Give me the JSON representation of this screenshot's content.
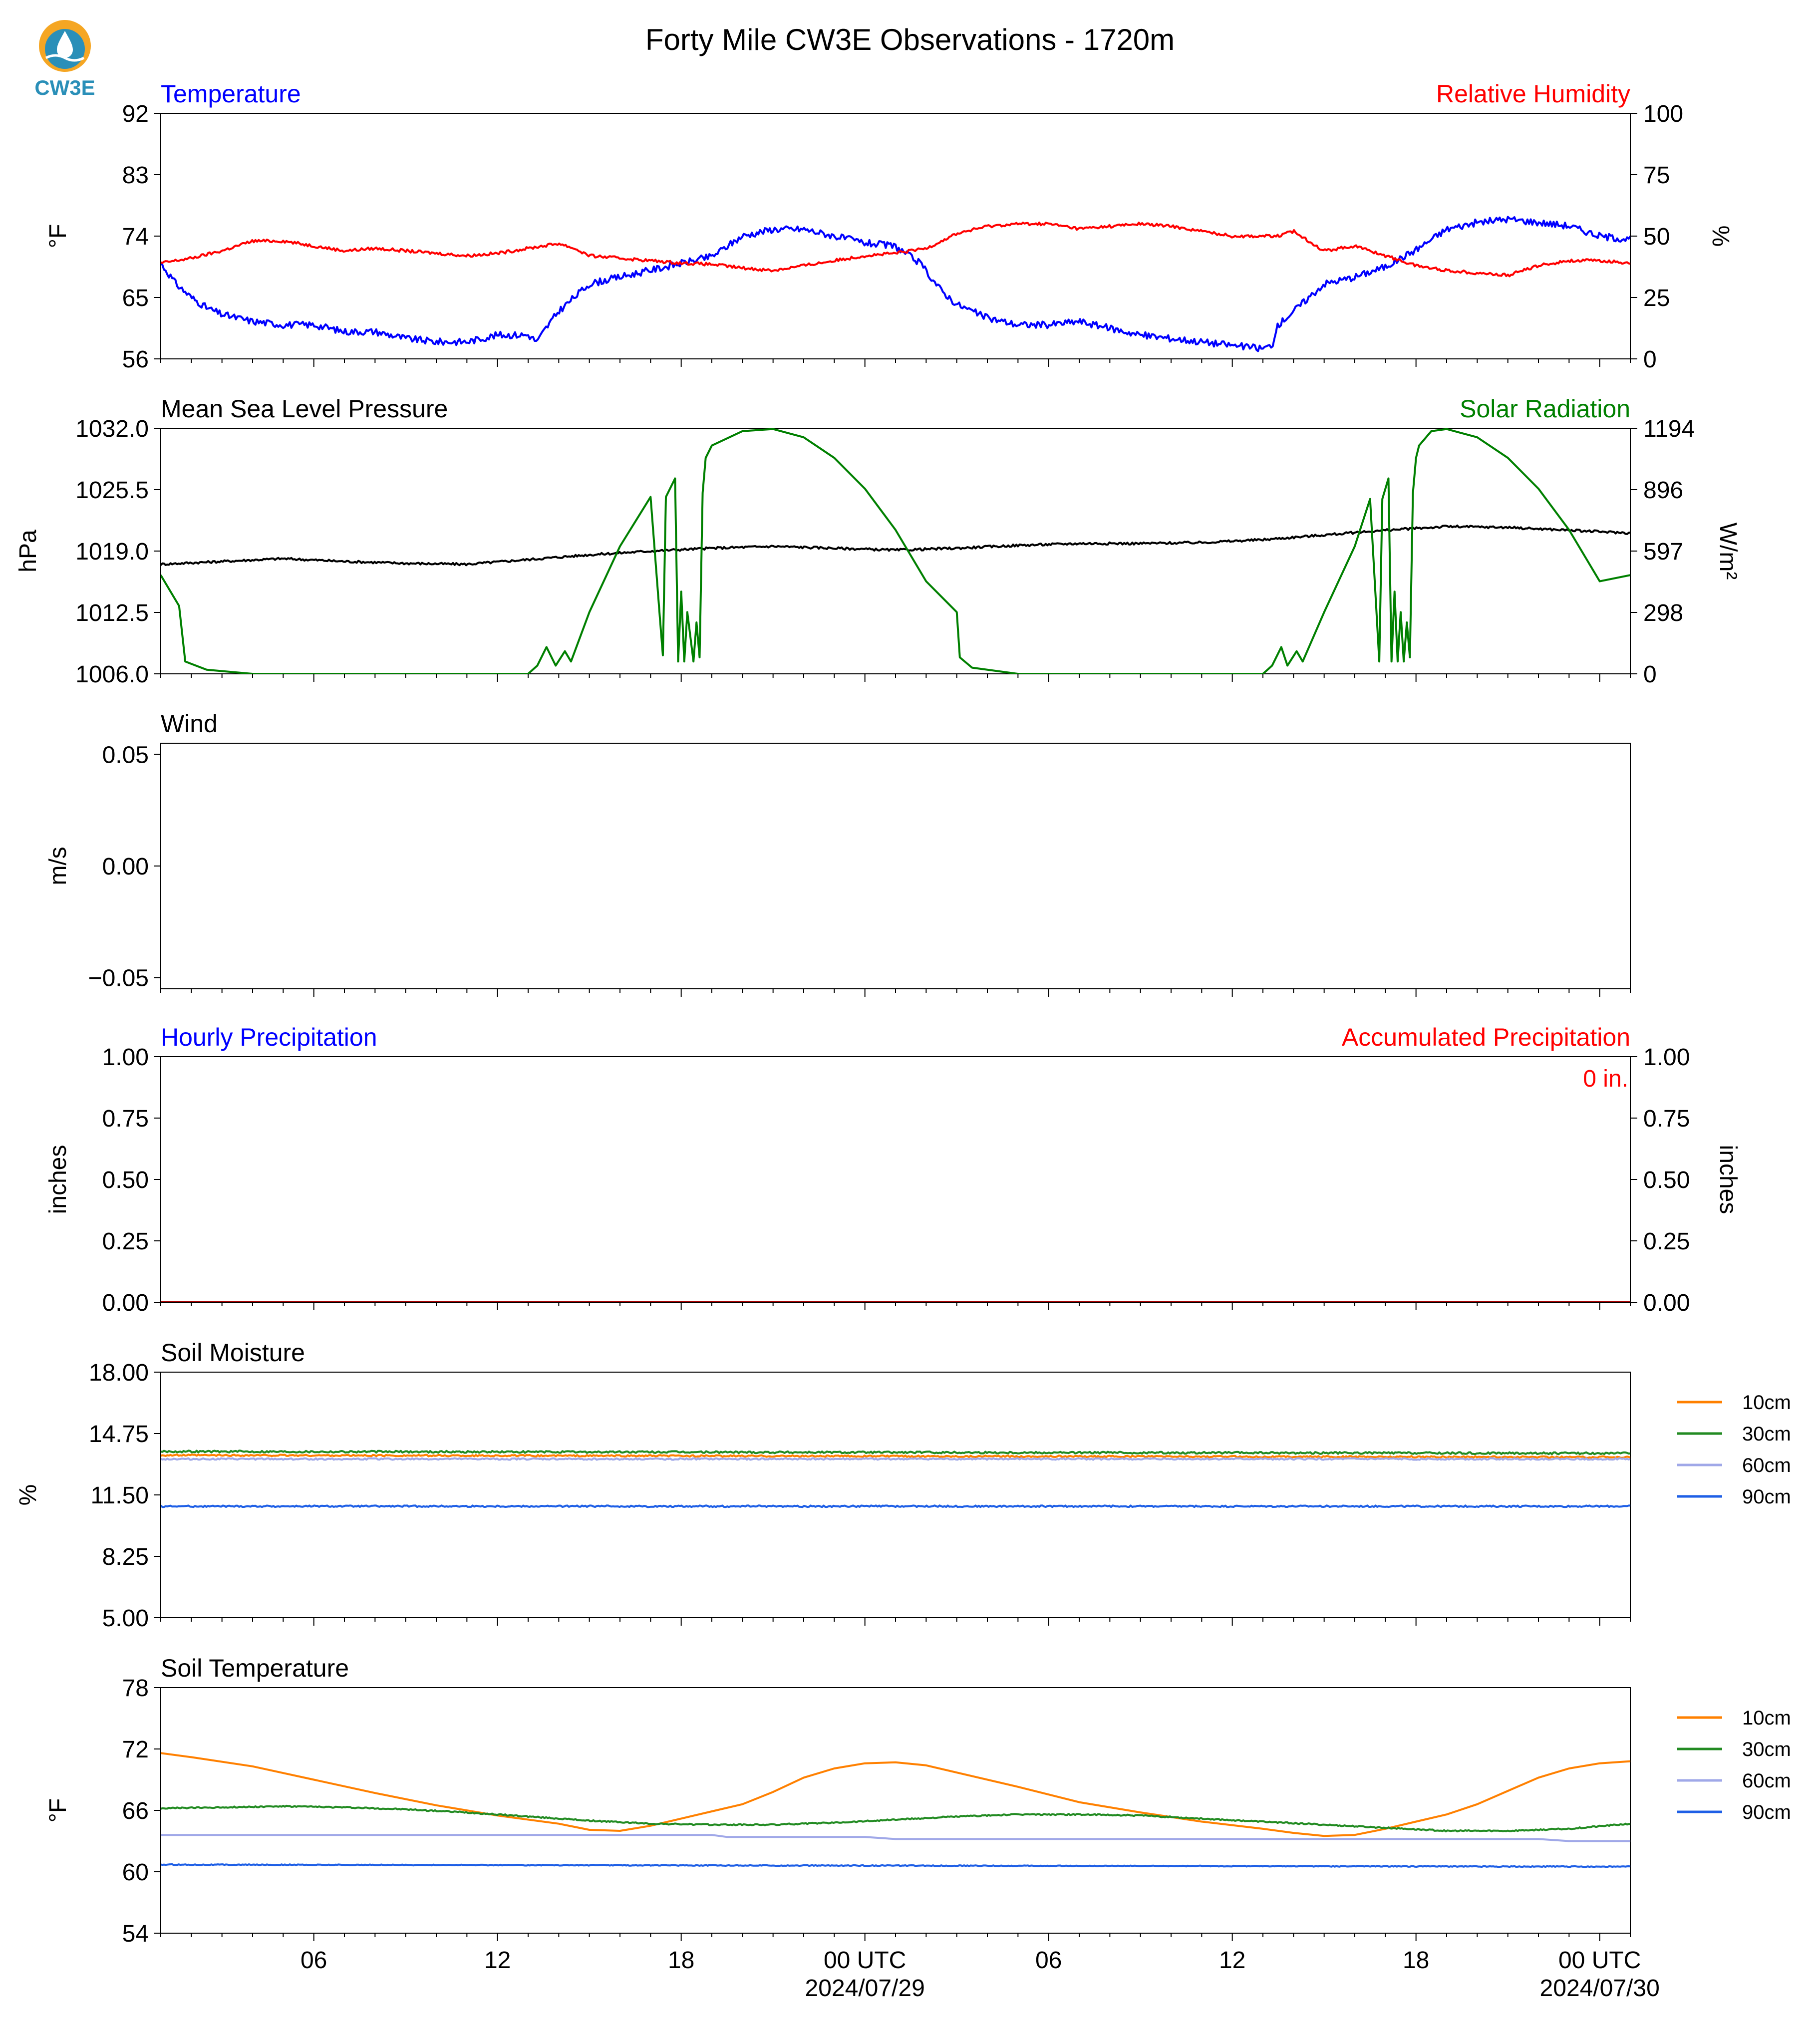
{
  "figure": {
    "title": "Forty Mile CW3E Observations - 1720m",
    "logo_text": "CW3E",
    "x_axis": {
      "range": [
        0,
        48
      ],
      "tick_labels": [
        {
          "x": 5,
          "label": "06",
          "date": ""
        },
        {
          "x": 11,
          "label": "12",
          "date": ""
        },
        {
          "x": 17,
          "label": "18",
          "date": ""
        },
        {
          "x": 23,
          "label": "00 UTC",
          "date": "2024/07/29"
        },
        {
          "x": 29,
          "label": "06",
          "date": ""
        },
        {
          "x": 35,
          "label": "12",
          "date": ""
        },
        {
          "x": 41,
          "label": "18",
          "date": ""
        },
        {
          "x": 47,
          "label": "00 UTC",
          "date": "2024/07/30"
        }
      ]
    }
  },
  "chart_data": [
    {
      "type": "line",
      "id": "temp_rh",
      "left_title": "Temperature",
      "right_title": "Relative Humidity",
      "left_title_color": "#0000ff",
      "right_title_color": "#ff0000",
      "ylabel": "°F",
      "ylabel_right": "%",
      "ylim": [
        56,
        92
      ],
      "yticks": [
        "92",
        "83",
        "74",
        "65",
        "56"
      ],
      "ylim_right": [
        0,
        100
      ],
      "yticks_right": [
        "100",
        "75",
        "50",
        "25",
        "0"
      ],
      "series": [
        {
          "axis": "left",
          "color": "#0000ff",
          "noise": 0.5,
          "x": [
            0,
            0.5,
            1,
            1.5,
            2,
            2.5,
            3,
            4,
            5,
            6,
            7,
            8,
            9,
            10,
            11,
            12,
            12.3,
            12.5,
            13,
            13.5,
            14,
            15,
            16,
            17,
            18,
            19,
            20,
            21,
            22,
            23,
            24,
            24.8,
            25.5,
            26,
            27,
            28,
            29,
            30,
            31,
            32,
            33,
            34,
            35,
            36,
            36.3,
            36.5,
            37,
            37.5,
            38,
            39,
            40,
            41,
            42,
            43,
            44,
            45,
            46,
            47,
            48
          ],
          "y": [
            70,
            67,
            65,
            63.5,
            62.5,
            62,
            61.5,
            61,
            61,
            60,
            60,
            59,
            58.5,
            58.5,
            59.5,
            59.5,
            58.5,
            60,
            63,
            65,
            67,
            68,
            69,
            70,
            71,
            74,
            75,
            75,
            74,
            73,
            72.5,
            70,
            66,
            64,
            62,
            61,
            61,
            61.5,
            60.5,
            59.5,
            59,
            58.5,
            58,
            57.5,
            58,
            61,
            63,
            65,
            67,
            68,
            69.5,
            72,
            75,
            76,
            76.5,
            76,
            75.5,
            74,
            73.5
          ]
        },
        {
          "axis": "right",
          "color": "#ff0000",
          "noise": 0.6,
          "x": [
            0,
            1,
            2,
            3,
            4,
            5,
            6,
            7,
            8,
            9,
            10,
            11,
            12,
            13,
            13.5,
            14,
            15,
            16,
            17,
            18,
            19,
            20,
            21,
            22,
            23,
            24,
            25,
            26,
            27,
            28,
            29,
            30,
            31,
            32,
            33,
            34,
            35,
            36,
            36.5,
            37,
            37.5,
            38,
            39,
            40,
            41,
            42,
            43,
            44,
            45,
            46,
            47,
            48
          ],
          "y": [
            39,
            41,
            44,
            48,
            48,
            46,
            44,
            45,
            44,
            43,
            42,
            43,
            45,
            47,
            45,
            42,
            41,
            40,
            39,
            38.5,
            37,
            36,
            38,
            40,
            42,
            43,
            45,
            51,
            54,
            55,
            55,
            53,
            54,
            55,
            54,
            52,
            50,
            50,
            50,
            52,
            48,
            44,
            46,
            42,
            38,
            36,
            35,
            34,
            38,
            40,
            40,
            39
          ]
        }
      ]
    },
    {
      "type": "line",
      "id": "pressure_solar",
      "left_title": "Mean Sea Level Pressure",
      "right_title": "Solar Radiation",
      "left_title_color": "#000000",
      "right_title_color": "#008000",
      "ylabel": "hPa",
      "ylabel_right": "W/m²",
      "ylim": [
        1006.0,
        1032.0
      ],
      "yticks": [
        "1032.0",
        "1025.5",
        "1019.0",
        "1012.5",
        "1006.0"
      ],
      "ylim_right": [
        0,
        1194
      ],
      "yticks_right": [
        "1194",
        "896",
        "597",
        "298",
        "0"
      ],
      "series": [
        {
          "axis": "left",
          "color": "#000000",
          "noise": 0.12,
          "x": [
            0,
            2,
            4,
            6,
            8,
            10,
            12,
            14,
            16,
            18,
            20,
            22,
            24,
            26,
            28,
            30,
            32,
            34,
            36,
            38,
            40,
            42,
            44,
            46,
            48
          ],
          "y": [
            1017.6,
            1017.9,
            1018.2,
            1017.9,
            1017.7,
            1017.6,
            1018.1,
            1018.6,
            1019.0,
            1019.3,
            1019.5,
            1019.3,
            1019.1,
            1019.3,
            1019.6,
            1019.8,
            1019.8,
            1019.9,
            1020.2,
            1020.7,
            1021.2,
            1021.6,
            1021.5,
            1021.2,
            1020.9
          ]
        },
        {
          "axis": "right",
          "color": "#008000",
          "noise": 0,
          "x": [
            0,
            0.6,
            0.8,
            1.5,
            3,
            6,
            9,
            12,
            12.3,
            12.6,
            12.9,
            13.2,
            13.4,
            14,
            15,
            16,
            16.3,
            16.4,
            16.5,
            16.8,
            16.9,
            17,
            17.1,
            17.2,
            17.4,
            17.5,
            17.6,
            17.7,
            17.8,
            18,
            19,
            20,
            21,
            22,
            23,
            24,
            25,
            26,
            26.1,
            26.5,
            28,
            30,
            33,
            36,
            36.3,
            36.6,
            36.8,
            37.1,
            37.3,
            38,
            39,
            39.5,
            39.8,
            39.9,
            40.1,
            40.2,
            40.3,
            40.4,
            40.5,
            40.6,
            40.7,
            40.8,
            40.9,
            41,
            41.1,
            41.5,
            42,
            43,
            44,
            45,
            46,
            47,
            48
          ],
          "y": [
            480,
            330,
            60,
            20,
            0,
            0,
            0,
            0,
            40,
            130,
            40,
            110,
            60,
            300,
            620,
            860,
            280,
            90,
            860,
            950,
            60,
            400,
            60,
            300,
            60,
            250,
            80,
            880,
            1050,
            1110,
            1180,
            1190,
            1150,
            1050,
            900,
            700,
            450,
            300,
            80,
            30,
            0,
            0,
            0,
            0,
            40,
            130,
            40,
            110,
            60,
            300,
            620,
            850,
            60,
            850,
            950,
            60,
            400,
            60,
            300,
            60,
            250,
            80,
            880,
            1050,
            1110,
            1180,
            1190,
            1150,
            1050,
            900,
            700,
            450,
            480
          ]
        }
      ]
    },
    {
      "type": "line",
      "id": "wind",
      "left_title": "Wind",
      "right_title": "",
      "left_title_color": "#000000",
      "right_title_color": "#000000",
      "ylabel": "m/s",
      "ylabel_right": "",
      "ylim": [
        -0.055,
        0.055
      ],
      "ytick_values": [
        0.05,
        0.0,
        -0.05
      ],
      "yticks": [
        "0.05",
        "0.00",
        "−0.05"
      ],
      "series": []
    },
    {
      "type": "line",
      "id": "precip",
      "left_title": "Hourly Precipitation",
      "right_title": "Accumulated Precipitation",
      "left_title_color": "#0000ff",
      "right_title_color": "#ff0000",
      "ylabel": "inches",
      "ylabel_right": "inches",
      "ylim": [
        0,
        1
      ],
      "yticks": [
        "1.00",
        "0.75",
        "0.50",
        "0.25",
        "0.00"
      ],
      "ylim_right": [
        0,
        1
      ],
      "yticks_right": [
        "1.00",
        "0.75",
        "0.50",
        "0.25",
        "0.00"
      ],
      "annotation": "0 in.",
      "series": [
        {
          "axis": "right",
          "color": "#aa0000",
          "noise": 0,
          "x": [
            0,
            48
          ],
          "y": [
            0,
            0
          ]
        }
      ]
    },
    {
      "type": "line",
      "id": "soil_moisture",
      "left_title": "Soil Moisture",
      "right_title": "",
      "left_title_color": "#000000",
      "right_title_color": "#000000",
      "ylabel": "%",
      "ylabel_right": "",
      "ylim": [
        5.0,
        18.0
      ],
      "yticks": [
        "18.00",
        "14.75",
        "11.50",
        "8.25",
        "5.00"
      ],
      "legend": [
        "10cm",
        "30cm",
        "60cm",
        "90cm"
      ],
      "series": [
        {
          "name": "10cm",
          "axis": "left",
          "color": "#ff8000",
          "noise": 0.04,
          "x": [
            0,
            48
          ],
          "y": [
            13.6,
            13.5
          ]
        },
        {
          "name": "30cm",
          "axis": "left",
          "color": "#228b22",
          "noise": 0.05,
          "x": [
            0,
            48
          ],
          "y": [
            13.8,
            13.7
          ]
        },
        {
          "name": "60cm",
          "axis": "left",
          "color": "#a0a8e8",
          "noise": 0.04,
          "x": [
            0,
            48
          ],
          "y": [
            13.4,
            13.4
          ]
        },
        {
          "name": "90cm",
          "axis": "left",
          "color": "#1e5fe6",
          "noise": 0.04,
          "x": [
            0,
            48
          ],
          "y": [
            10.9,
            10.9
          ]
        }
      ]
    },
    {
      "type": "line",
      "id": "soil_temperature",
      "left_title": "Soil Temperature",
      "right_title": "",
      "left_title_color": "#000000",
      "right_title_color": "#000000",
      "ylabel": "°F",
      "ylabel_right": "",
      "ylim": [
        54,
        78
      ],
      "yticks": [
        "78",
        "72",
        "66",
        "60",
        "54"
      ],
      "legend": [
        "10cm",
        "30cm",
        "60cm",
        "90cm"
      ],
      "series": [
        {
          "name": "10cm",
          "axis": "left",
          "color": "#ff8000",
          "noise": 0,
          "x": [
            0,
            1,
            3,
            5,
            7,
            9,
            11,
            13,
            14,
            15,
            16,
            17,
            18,
            19,
            20,
            21,
            22,
            23,
            24,
            25,
            26,
            28,
            30,
            32,
            34,
            36,
            37,
            38,
            39,
            40,
            41,
            42,
            43,
            44,
            45,
            46,
            47,
            48
          ],
          "y": [
            71.6,
            71.2,
            70.3,
            69.0,
            67.7,
            66.5,
            65.5,
            64.7,
            64.1,
            64.0,
            64.5,
            65.2,
            65.9,
            66.6,
            67.8,
            69.2,
            70.1,
            70.6,
            70.7,
            70.4,
            69.7,
            68.3,
            66.8,
            65.8,
            64.9,
            64.2,
            63.8,
            63.5,
            63.6,
            64.2,
            64.9,
            65.6,
            66.6,
            67.9,
            69.2,
            70.1,
            70.6,
            70.8
          ]
        },
        {
          "name": "30cm",
          "axis": "left",
          "color": "#228b22",
          "noise": 0.06,
          "x": [
            0,
            2,
            4,
            6,
            8,
            10,
            12,
            14,
            16,
            18,
            20,
            22,
            24,
            26,
            28,
            30,
            32,
            34,
            36,
            38,
            40,
            42,
            44,
            46,
            48
          ],
          "y": [
            66.2,
            66.3,
            66.4,
            66.3,
            66.1,
            65.8,
            65.4,
            65.0,
            64.7,
            64.6,
            64.6,
            64.8,
            65.1,
            65.4,
            65.6,
            65.6,
            65.5,
            65.2,
            64.9,
            64.6,
            64.3,
            64.0,
            64.0,
            64.2,
            64.7
          ]
        },
        {
          "name": "60cm",
          "axis": "left",
          "color": "#a0a8e8",
          "noise": 0,
          "x": [
            0,
            18,
            18.5,
            23,
            24,
            45,
            46,
            48
          ],
          "y": [
            63.6,
            63.6,
            63.4,
            63.4,
            63.2,
            63.2,
            63.0,
            63.0
          ]
        },
        {
          "name": "90cm",
          "axis": "left",
          "color": "#1e5fe6",
          "noise": 0.04,
          "x": [
            0,
            48
          ],
          "y": [
            60.7,
            60.5
          ]
        }
      ]
    }
  ]
}
